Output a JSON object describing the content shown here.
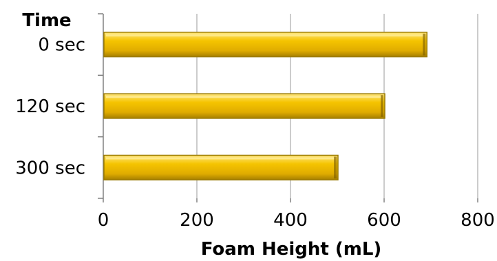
{
  "chart_data": {
    "type": "bar",
    "orientation": "horizontal",
    "categories": [
      "0 sec",
      "120 sec",
      "300 sec"
    ],
    "values": [
      690,
      600,
      500
    ],
    "category_axis_title": "Time",
    "xlabel": "Foam Height (mL)",
    "xlim": [
      0,
      800
    ],
    "xticks": [
      0,
      200,
      400,
      600,
      800
    ],
    "grid": "vertical",
    "legend": "none",
    "bar_color": "#F5C400",
    "bar_edge_color": "#9A7A00"
  }
}
